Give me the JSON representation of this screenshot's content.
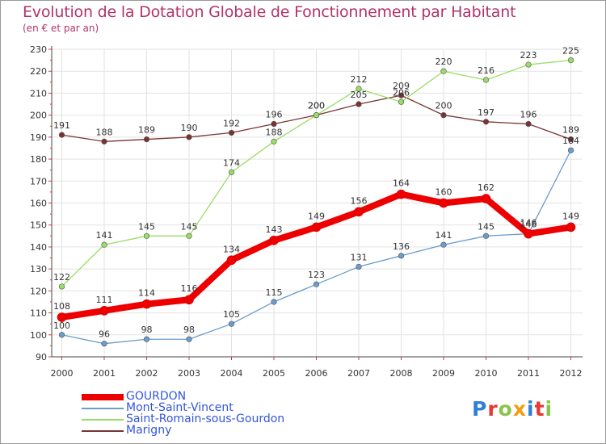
{
  "title": "Evolution de la Dotation Globale de Fonctionnement par Habitant",
  "subtitle": "(en € et par an)",
  "logo": {
    "text": "Proxiti",
    "letters": [
      "P",
      "r",
      "o",
      "x",
      "i",
      "t",
      "i"
    ],
    "colors": [
      "#2f7fd6",
      "#e53935",
      "#8bc34a",
      "#f39c12",
      "#2f7fd6",
      "#e53935",
      "#8bc34a"
    ]
  },
  "chart_data": {
    "type": "line",
    "x": [
      "2000",
      "2001",
      "2002",
      "2003",
      "2004",
      "2005",
      "2006",
      "2007",
      "2008",
      "2009",
      "2010",
      "2011",
      "2012"
    ],
    "ylim": [
      90,
      230
    ],
    "yticks": [
      90,
      100,
      110,
      120,
      130,
      140,
      150,
      160,
      170,
      180,
      190,
      200,
      210,
      220,
      230
    ],
    "grid": true,
    "legend_position": "bottom-left",
    "series": [
      {
        "name": "GOURDON",
        "color": "#ee0000",
        "values": [
          108,
          111,
          114,
          116,
          134,
          143,
          149,
          156,
          164,
          160,
          162,
          146,
          149
        ]
      },
      {
        "name": "Mont-Saint-Vincent",
        "color": "#6a9ccc",
        "values": [
          100,
          96,
          98,
          98,
          105,
          115,
          123,
          131,
          136,
          141,
          145,
          146,
          184
        ]
      },
      {
        "name": "Saint-Romain-sous-Gourdon",
        "color": "#99dd66",
        "values": [
          122,
          141,
          145,
          145,
          174,
          188,
          200,
          212,
          206,
          220,
          216,
          223,
          225
        ]
      },
      {
        "name": "Marigny",
        "color": "#7a3333",
        "values": [
          191,
          188,
          189,
          190,
          192,
          196,
          200,
          205,
          209,
          200,
          197,
          196,
          189
        ]
      }
    ]
  }
}
